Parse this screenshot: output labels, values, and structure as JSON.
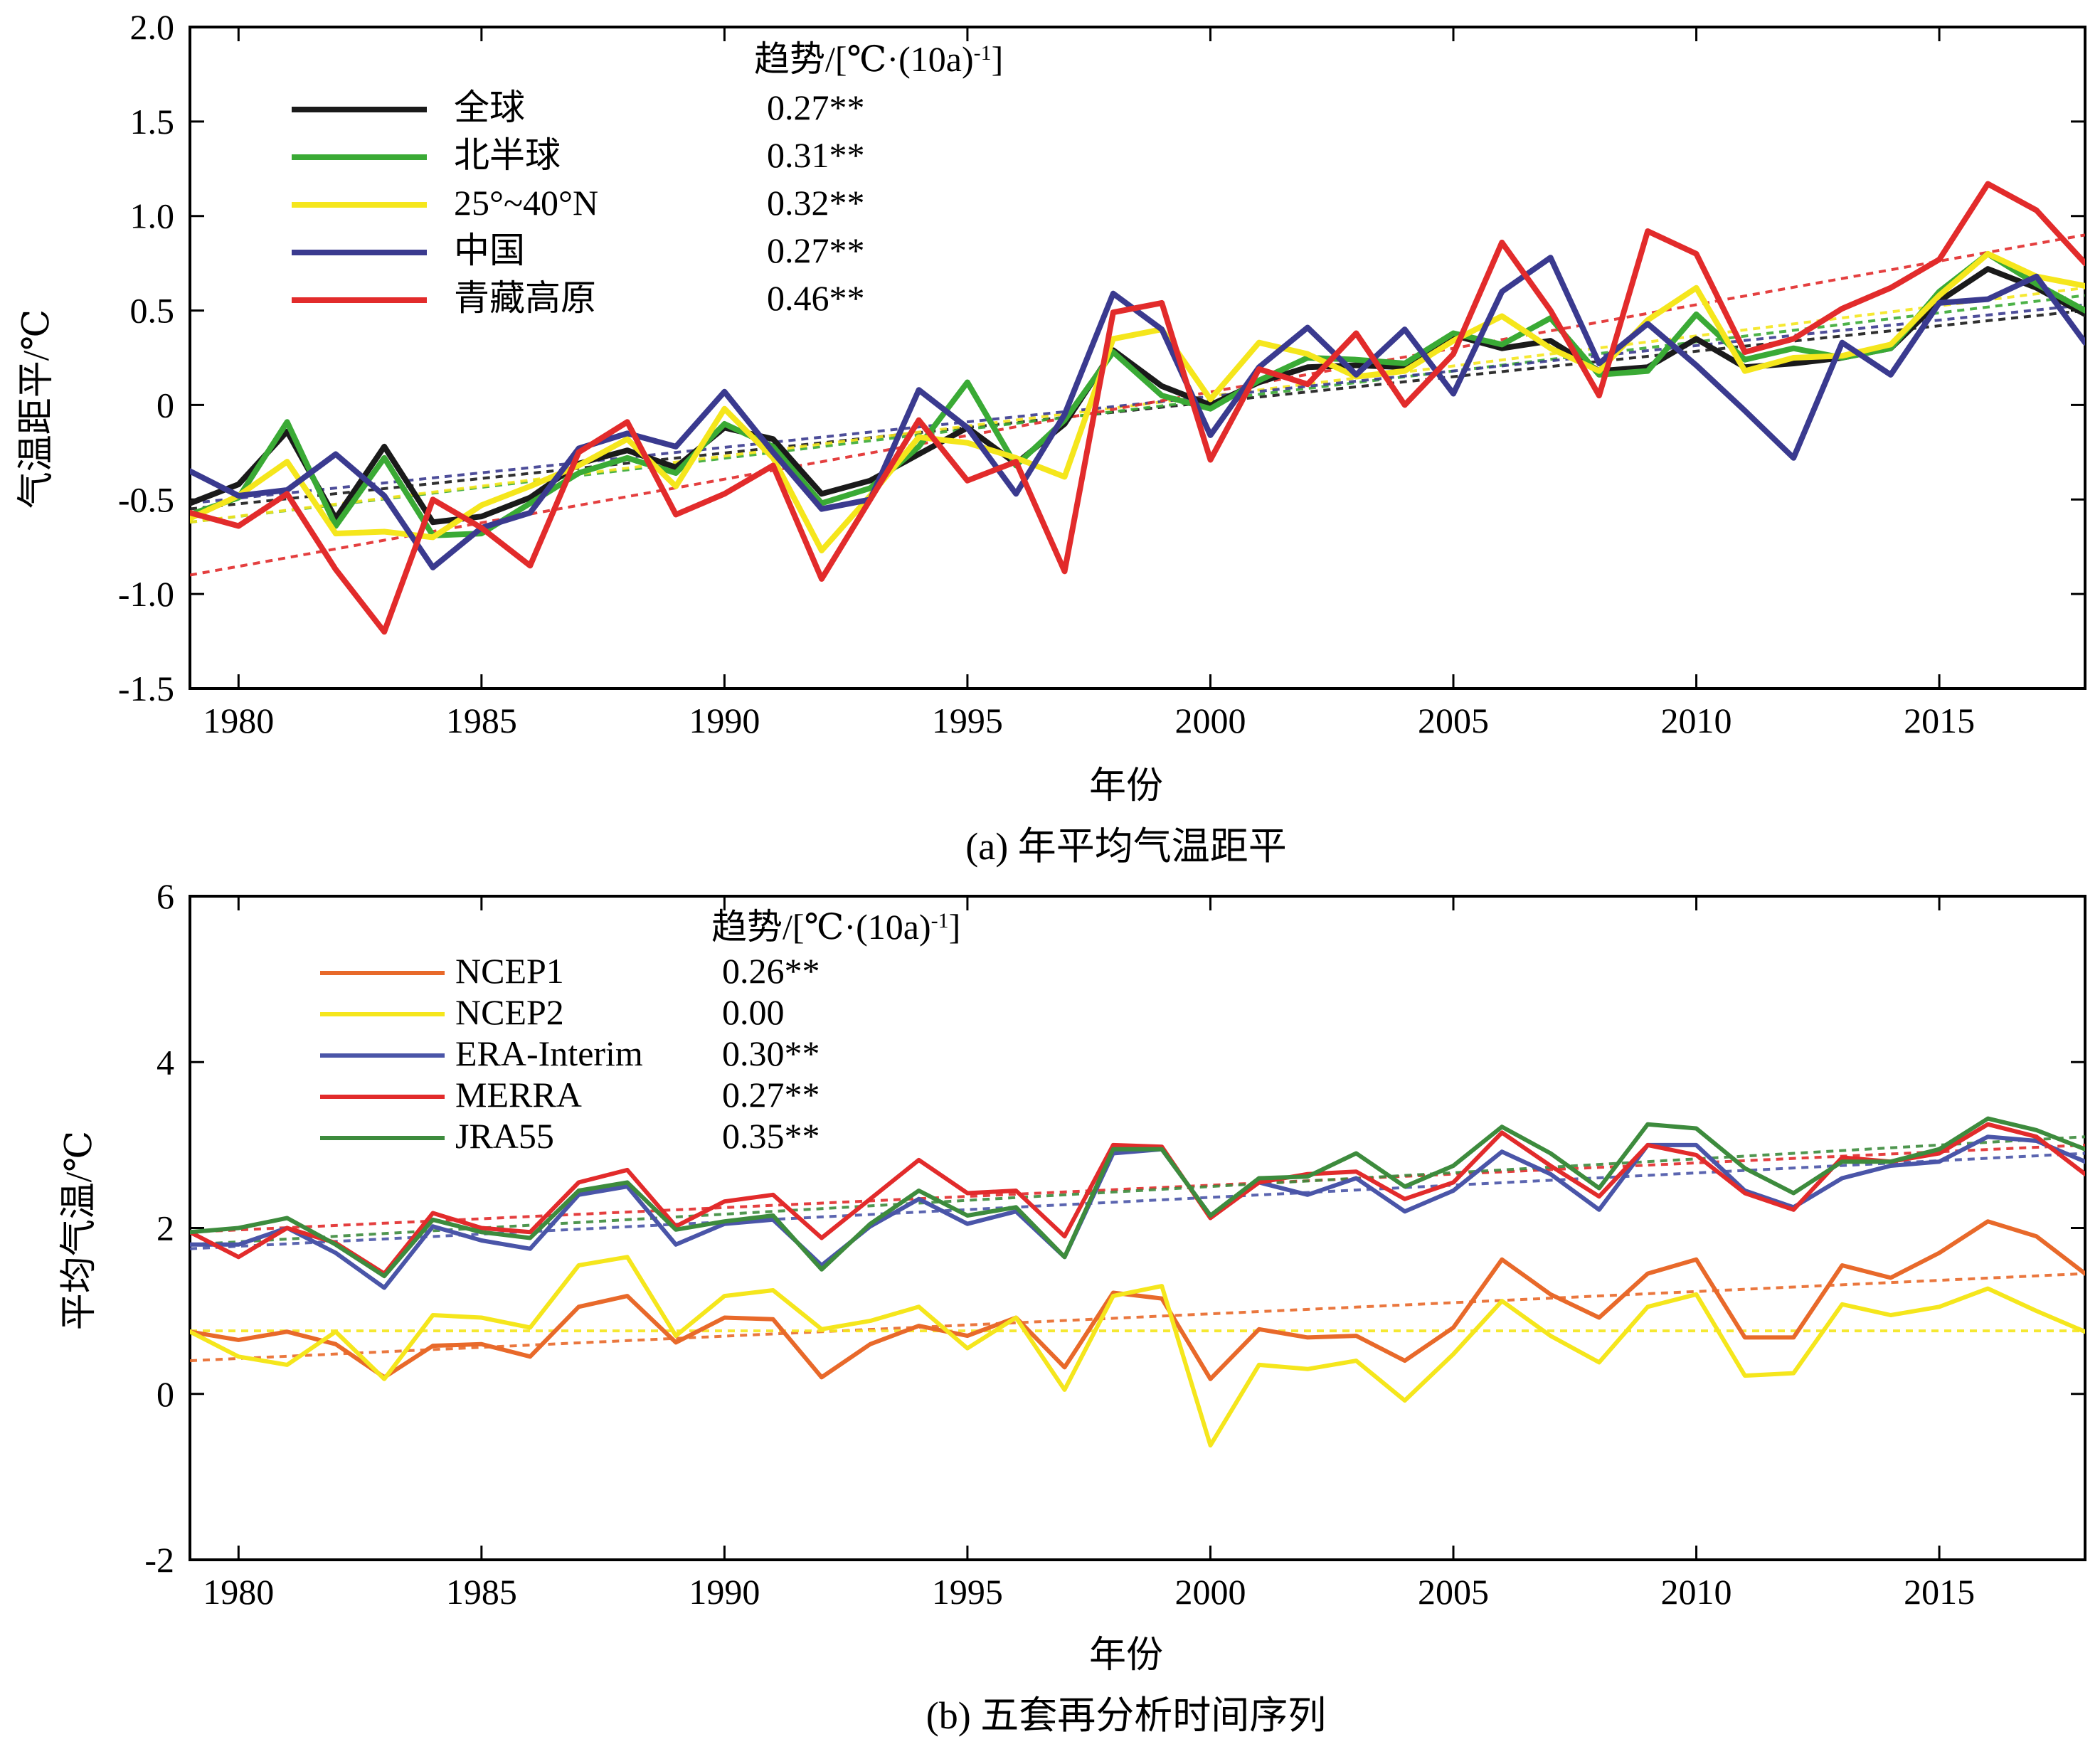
{
  "chart_data": [
    {
      "type": "line",
      "title": "(a) 年平均气温距平",
      "xlabel": "年份",
      "ylabel": "气温距平/℃",
      "xlim": [
        1979,
        2018
      ],
      "ylim": [
        -1.5,
        2.0
      ],
      "xticks": [
        1980,
        1985,
        1990,
        1995,
        2000,
        2005,
        2010,
        2015
      ],
      "yticks": [
        "2.0",
        "1.5",
        "1.0",
        "0.5",
        "0",
        "-0.5",
        "-1.0",
        "-1.5"
      ],
      "legend_header": "趋势/[℃·(10a)",
      "legend_header_sup": "-1",
      "legend_header_close": "]",
      "legend_position": "top-left",
      "grid": false,
      "x": [
        1979,
        1980,
        1981,
        1982,
        1983,
        1984,
        1985,
        1986,
        1987,
        1988,
        1989,
        1990,
        1991,
        1992,
        1993,
        1994,
        1995,
        1996,
        1997,
        1998,
        1999,
        2000,
        2001,
        2002,
        2003,
        2004,
        2005,
        2006,
        2007,
        2008,
        2009,
        2010,
        2011,
        2012,
        2013,
        2014,
        2015,
        2016,
        2017,
        2018
      ],
      "series": [
        {
          "name": "全球",
          "trend": "0.27**",
          "color": "#1a1a1a",
          "values": [
            -0.52,
            -0.42,
            -0.14,
            -0.6,
            -0.22,
            -0.62,
            -0.59,
            -0.49,
            -0.31,
            -0.24,
            -0.33,
            -0.12,
            -0.18,
            -0.47,
            -0.4,
            -0.26,
            -0.12,
            -0.31,
            -0.1,
            0.29,
            0.1,
            0.0,
            0.12,
            0.2,
            0.21,
            0.2,
            0.37,
            0.3,
            0.34,
            0.18,
            0.2,
            0.35,
            0.2,
            0.22,
            0.25,
            0.3,
            0.55,
            0.72,
            0.62,
            0.48
          ],
          "trend_line": [
            -0.55,
            0.5
          ]
        },
        {
          "name": "北半球",
          "trend": "0.31**",
          "color": "#3aaa35",
          "values": [
            -0.58,
            -0.49,
            -0.09,
            -0.64,
            -0.28,
            -0.69,
            -0.68,
            -0.52,
            -0.36,
            -0.28,
            -0.36,
            -0.1,
            -0.22,
            -0.52,
            -0.44,
            -0.22,
            0.12,
            -0.32,
            -0.08,
            0.28,
            0.05,
            -0.02,
            0.13,
            0.25,
            0.24,
            0.22,
            0.38,
            0.32,
            0.46,
            0.16,
            0.18,
            0.48,
            0.24,
            0.3,
            0.25,
            0.3,
            0.6,
            0.8,
            0.64,
            0.5
          ],
          "trend_line": [
            -0.62,
            0.58
          ]
        },
        {
          "name": "25°~40°N",
          "trend": "0.32**",
          "color": "#f5e61c",
          "values": [
            -0.6,
            -0.48,
            -0.3,
            -0.68,
            -0.67,
            -0.7,
            -0.53,
            -0.43,
            -0.32,
            -0.18,
            -0.43,
            -0.02,
            -0.28,
            -0.77,
            -0.48,
            -0.17,
            -0.2,
            -0.28,
            -0.38,
            0.35,
            0.4,
            0.03,
            0.33,
            0.27,
            0.15,
            0.18,
            0.34,
            0.47,
            0.3,
            0.18,
            0.45,
            0.62,
            0.18,
            0.25,
            0.26,
            0.32,
            0.58,
            0.8,
            0.68,
            0.63
          ],
          "trend_line": [
            -0.62,
            0.62
          ]
        },
        {
          "name": "中国",
          "trend": "0.27**",
          "color": "#3a3a8f",
          "values": [
            -0.35,
            -0.48,
            -0.45,
            -0.26,
            -0.48,
            -0.86,
            -0.65,
            -0.57,
            -0.23,
            -0.15,
            -0.22,
            0.07,
            -0.25,
            -0.55,
            -0.5,
            0.08,
            -0.12,
            -0.47,
            -0.05,
            0.59,
            0.4,
            -0.16,
            0.2,
            0.41,
            0.16,
            0.4,
            0.06,
            0.6,
            0.78,
            0.22,
            0.43,
            0.21,
            -0.03,
            -0.28,
            0.33,
            0.16,
            0.54,
            0.56,
            0.68,
            0.33
          ],
          "trend_line": [
            -0.52,
            0.53
          ]
        },
        {
          "name": "青藏高原",
          "trend": "0.46**",
          "color": "#e22b2b",
          "values": [
            -0.57,
            -0.64,
            -0.47,
            -0.87,
            -1.2,
            -0.5,
            -0.65,
            -0.85,
            -0.25,
            -0.09,
            -0.58,
            -0.47,
            -0.32,
            -0.92,
            -0.5,
            -0.08,
            -0.4,
            -0.3,
            -0.88,
            0.49,
            0.54,
            -0.29,
            0.19,
            0.11,
            0.38,
            0.0,
            0.27,
            0.86,
            0.5,
            0.05,
            0.92,
            0.8,
            0.28,
            0.35,
            0.51,
            0.62,
            0.77,
            1.17,
            1.03,
            0.75
          ],
          "trend_line": [
            -0.9,
            0.9
          ]
        }
      ]
    },
    {
      "type": "line",
      "title": "(b) 五套再分析时间序列",
      "xlabel": "年份",
      "ylabel": "平均气温/℃",
      "xlim": [
        1979,
        2018
      ],
      "ylim": [
        -2,
        6
      ],
      "xticks": [
        1980,
        1985,
        1990,
        1995,
        2000,
        2005,
        2010,
        2015
      ],
      "yticks": [
        "6",
        "4",
        "2",
        "0",
        "-2"
      ],
      "legend_header": "趋势/[℃·(10a)",
      "legend_header_sup": "-1",
      "legend_header_close": "]",
      "legend_position": "top-left",
      "grid": false,
      "x": [
        1979,
        1980,
        1981,
        1982,
        1983,
        1984,
        1985,
        1986,
        1987,
        1988,
        1989,
        1990,
        1991,
        1992,
        1993,
        1994,
        1995,
        1996,
        1997,
        1998,
        1999,
        2000,
        2001,
        2002,
        2003,
        2004,
        2005,
        2006,
        2007,
        2008,
        2009,
        2010,
        2011,
        2012,
        2013,
        2014,
        2015,
        2016,
        2017,
        2018
      ],
      "series": [
        {
          "name": "NCEP1",
          "trend": "0.26**",
          "color": "#e8692a",
          "values": [
            0.75,
            0.65,
            0.75,
            0.6,
            0.2,
            0.58,
            0.6,
            0.45,
            1.05,
            1.18,
            0.62,
            0.92,
            0.9,
            0.2,
            0.6,
            0.82,
            0.7,
            0.92,
            0.32,
            1.22,
            1.15,
            0.18,
            0.78,
            0.68,
            0.7,
            0.4,
            0.8,
            1.62,
            1.2,
            0.92,
            1.45,
            1.62,
            0.68,
            0.68,
            1.55,
            1.4,
            1.7,
            2.08,
            1.9,
            1.45
          ],
          "trend_line": [
            0.4,
            1.45
          ]
        },
        {
          "name": "NCEP2",
          "trend": "0.00",
          "color": "#f5e61c",
          "values": [
            0.75,
            0.45,
            0.35,
            0.75,
            0.18,
            0.95,
            0.92,
            0.8,
            1.55,
            1.65,
            0.7,
            1.18,
            1.25,
            0.78,
            0.88,
            1.05,
            0.55,
            0.92,
            0.05,
            1.18,
            1.3,
            -0.62,
            0.35,
            0.3,
            0.4,
            -0.08,
            0.48,
            1.12,
            0.7,
            0.38,
            1.05,
            1.2,
            0.22,
            0.25,
            1.08,
            0.95,
            1.05,
            1.27,
            1.0,
            0.75
          ],
          "trend_line": [
            0.76,
            0.76
          ]
        },
        {
          "name": "ERA-Interim",
          "trend": "0.30**",
          "color": "#4a55a8",
          "values": [
            1.8,
            1.8,
            2.0,
            1.7,
            1.28,
            2.02,
            1.85,
            1.75,
            2.4,
            2.5,
            1.8,
            2.05,
            2.1,
            1.55,
            2.02,
            2.35,
            2.05,
            2.2,
            1.65,
            2.9,
            2.95,
            2.15,
            2.55,
            2.4,
            2.6,
            2.2,
            2.45,
            2.92,
            2.65,
            2.22,
            3.0,
            3.0,
            2.45,
            2.25,
            2.6,
            2.75,
            2.8,
            3.1,
            3.05,
            2.8
          ],
          "trend_line": [
            1.75,
            2.9
          ]
        },
        {
          "name": "MERRA",
          "trend": "0.27**",
          "color": "#e22b2b",
          "values": [
            1.95,
            1.65,
            2.0,
            1.82,
            1.45,
            2.18,
            2.0,
            1.95,
            2.55,
            2.7,
            2.02,
            2.32,
            2.4,
            1.88,
            2.35,
            2.82,
            2.42,
            2.45,
            1.9,
            3.0,
            2.98,
            2.12,
            2.55,
            2.65,
            2.68,
            2.35,
            2.55,
            3.15,
            2.75,
            2.38,
            3.0,
            2.88,
            2.42,
            2.22,
            2.85,
            2.8,
            2.9,
            3.25,
            3.1,
            2.65
          ],
          "trend_line": [
            1.95,
            3.0
          ]
        },
        {
          "name": "JRA55",
          "trend": "0.35**",
          "color": "#3d8b3d",
          "values": [
            1.95,
            2.0,
            2.12,
            1.8,
            1.42,
            2.1,
            1.95,
            1.88,
            2.45,
            2.55,
            1.98,
            2.08,
            2.15,
            1.5,
            2.05,
            2.45,
            2.15,
            2.25,
            1.65,
            2.95,
            2.95,
            2.15,
            2.6,
            2.62,
            2.9,
            2.5,
            2.75,
            3.22,
            2.9,
            2.48,
            3.25,
            3.2,
            2.72,
            2.42,
            2.8,
            2.8,
            2.95,
            3.32,
            3.18,
            2.95
          ],
          "trend_line": [
            1.8,
            3.1
          ]
        }
      ]
    }
  ]
}
